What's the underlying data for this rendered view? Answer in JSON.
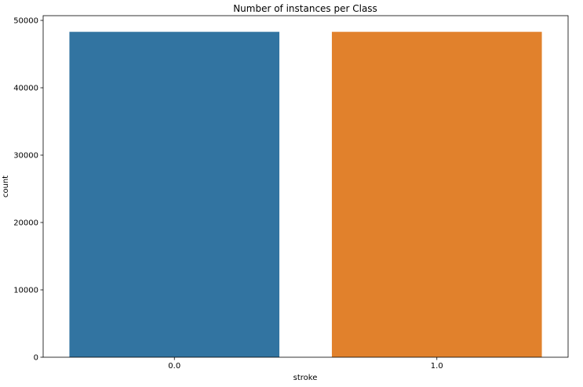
{
  "chart_data": {
    "type": "bar",
    "title": "Number of instances per Class",
    "xlabel": "stroke",
    "ylabel": "count",
    "categories": [
      "0.0",
      "1.0"
    ],
    "values": [
      48300,
      48300
    ],
    "colors": [
      "#3274a1",
      "#e1812c"
    ],
    "ylim": [
      0,
      50700
    ],
    "yticks": [
      0,
      10000,
      20000,
      30000,
      40000,
      50000
    ],
    "ytick_labels": [
      "0",
      "10000",
      "20000",
      "30000",
      "40000",
      "50000"
    ],
    "grid": false,
    "legend": "none"
  }
}
